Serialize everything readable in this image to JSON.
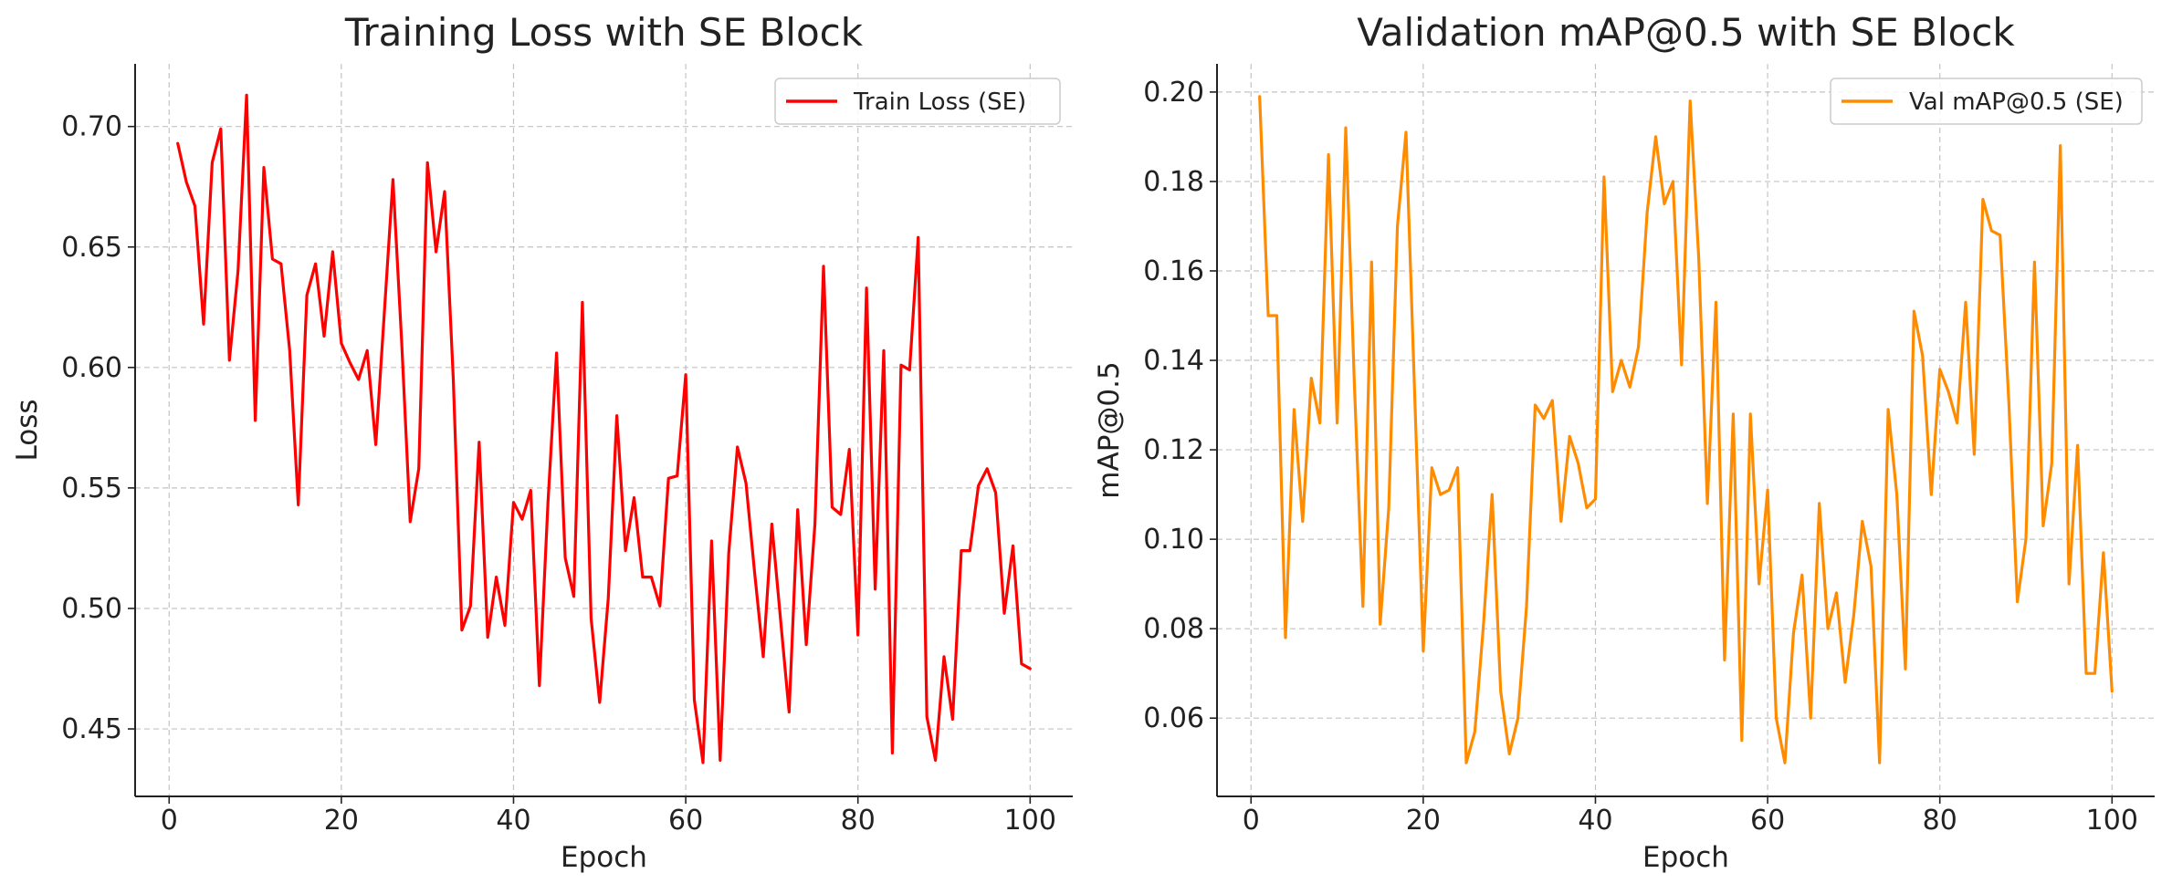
{
  "chart_data": [
    {
      "type": "line",
      "title": "Training Loss with SE Block",
      "xlabel": "Epoch",
      "ylabel": "Loss",
      "xlim": [
        -3.95,
        104.95
      ],
      "ylim": [
        0.422,
        0.726
      ],
      "xticks": [
        0,
        20,
        40,
        60,
        80,
        100
      ],
      "yticks": [
        0.45,
        0.5,
        0.55,
        0.6,
        0.65,
        0.7
      ],
      "ytick_decimals": 2,
      "grid": true,
      "legend_position": "top-right",
      "series": [
        {
          "name": "Train Loss (SE)",
          "color": "#ff0000",
          "x": [
            1,
            2,
            3,
            4,
            5,
            6,
            7,
            8,
            9,
            10,
            11,
            12,
            13,
            14,
            15,
            16,
            17,
            18,
            19,
            20,
            21,
            22,
            23,
            24,
            25,
            26,
            27,
            28,
            29,
            30,
            31,
            32,
            33,
            34,
            35,
            36,
            37,
            38,
            39,
            40,
            41,
            42,
            43,
            44,
            45,
            46,
            47,
            48,
            49,
            50,
            51,
            52,
            53,
            54,
            55,
            56,
            57,
            58,
            59,
            60,
            61,
            62,
            63,
            64,
            65,
            66,
            67,
            68,
            69,
            70,
            71,
            72,
            73,
            74,
            75,
            76,
            77,
            78,
            79,
            80,
            81,
            82,
            83,
            84,
            85,
            86,
            87,
            88,
            89,
            90,
            91,
            92,
            93,
            94,
            95,
            96,
            97,
            98,
            99,
            100
          ],
          "values": [
            0.693,
            0.677,
            0.667,
            0.618,
            0.685,
            0.699,
            0.603,
            0.64,
            0.713,
            0.578,
            0.683,
            0.645,
            0.643,
            0.607,
            0.543,
            0.63,
            0.643,
            0.613,
            0.648,
            0.61,
            0.602,
            0.595,
            0.607,
            0.568,
            0.623,
            0.678,
            0.611,
            0.536,
            0.558,
            0.685,
            0.648,
            0.673,
            0.595,
            0.491,
            0.501,
            0.569,
            0.488,
            0.513,
            0.493,
            0.544,
            0.537,
            0.549,
            0.468,
            0.544,
            0.606,
            0.521,
            0.505,
            0.627,
            0.496,
            0.461,
            0.504,
            0.58,
            0.524,
            0.546,
            0.513,
            0.513,
            0.501,
            0.554,
            0.555,
            0.597,
            0.462,
            0.436,
            0.528,
            0.437,
            0.523,
            0.567,
            0.552,
            0.515,
            0.48,
            0.535,
            0.496,
            0.457,
            0.541,
            0.485,
            0.535,
            0.642,
            0.542,
            0.539,
            0.566,
            0.489,
            0.633,
            0.508,
            0.607,
            0.44,
            0.601,
            0.599,
            0.654,
            0.455,
            0.437,
            0.48,
            0.454,
            0.524,
            0.524,
            0.551,
            0.558,
            0.548,
            0.498,
            0.526,
            0.477,
            0.475
          ]
        }
      ]
    },
    {
      "type": "line",
      "title": "Validation mAP@0.5 with SE Block",
      "xlabel": "Epoch",
      "ylabel": "mAP@0.5",
      "xlim": [
        -3.95,
        104.95
      ],
      "ylim": [
        0.0425,
        0.2063
      ],
      "xticks": [
        0,
        20,
        40,
        60,
        80,
        100
      ],
      "yticks": [
        0.06,
        0.08,
        0.1,
        0.12,
        0.14,
        0.16,
        0.18,
        0.2
      ],
      "ytick_decimals": 2,
      "grid": true,
      "legend_position": "top-right",
      "series": [
        {
          "name": "Val mAP@0.5 (SE)",
          "color": "#ff8c00",
          "x": [
            1,
            2,
            3,
            4,
            5,
            6,
            7,
            8,
            9,
            10,
            11,
            12,
            13,
            14,
            15,
            16,
            17,
            18,
            19,
            20,
            21,
            22,
            23,
            24,
            25,
            26,
            27,
            28,
            29,
            30,
            31,
            32,
            33,
            34,
            35,
            36,
            37,
            38,
            39,
            40,
            41,
            42,
            43,
            44,
            45,
            46,
            47,
            48,
            49,
            50,
            51,
            52,
            53,
            54,
            55,
            56,
            57,
            58,
            59,
            60,
            61,
            62,
            63,
            64,
            65,
            66,
            67,
            68,
            69,
            70,
            71,
            72,
            73,
            74,
            75,
            76,
            77,
            78,
            79,
            80,
            81,
            82,
            83,
            84,
            85,
            86,
            87,
            88,
            89,
            90,
            91,
            92,
            93,
            94,
            95,
            96,
            97,
            98,
            99,
            100
          ],
          "values": [
            0.199,
            0.15,
            0.15,
            0.078,
            0.129,
            0.104,
            0.136,
            0.126,
            0.186,
            0.126,
            0.192,
            0.135,
            0.085,
            0.162,
            0.081,
            0.107,
            0.17,
            0.191,
            0.133,
            0.075,
            0.116,
            0.11,
            0.111,
            0.116,
            0.05,
            0.057,
            0.081,
            0.11,
            0.066,
            0.052,
            0.06,
            0.085,
            0.13,
            0.127,
            0.131,
            0.104,
            0.123,
            0.117,
            0.107,
            0.109,
            0.181,
            0.133,
            0.14,
            0.134,
            0.143,
            0.173,
            0.19,
            0.175,
            0.18,
            0.139,
            0.198,
            0.163,
            0.108,
            0.153,
            0.073,
            0.128,
            0.055,
            0.128,
            0.09,
            0.111,
            0.06,
            0.05,
            0.079,
            0.092,
            0.06,
            0.108,
            0.08,
            0.088,
            0.068,
            0.083,
            0.104,
            0.094,
            0.05,
            0.129,
            0.11,
            0.071,
            0.151,
            0.141,
            0.11,
            0.138,
            0.133,
            0.126,
            0.153,
            0.119,
            0.176,
            0.169,
            0.168,
            0.131,
            0.086,
            0.1,
            0.162,
            0.103,
            0.117,
            0.188,
            0.09,
            0.121,
            0.07,
            0.07,
            0.097,
            0.066
          ]
        }
      ]
    }
  ]
}
